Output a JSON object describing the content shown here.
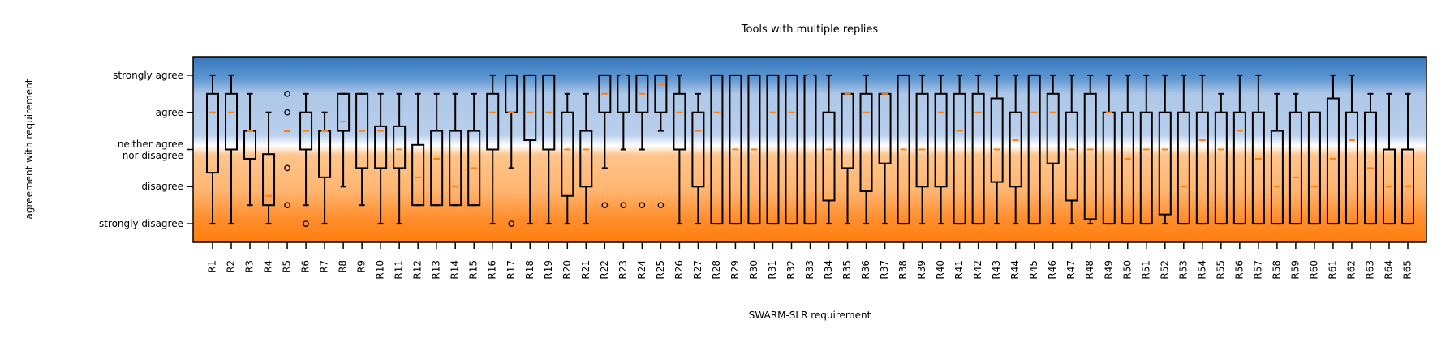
{
  "chart_data": {
    "type": "box",
    "title": "Tools with multiple replies",
    "x_label": "SWARM-SLR requirement",
    "y_label": "agreement with requirement",
    "categories": [
      "R1",
      "R2",
      "R3",
      "R4",
      "R5",
      "R6",
      "R7",
      "R8",
      "R9",
      "R10",
      "R11",
      "R12",
      "R13",
      "R14",
      "R15",
      "R16",
      "R17",
      "R18",
      "R19",
      "R20",
      "R21",
      "R22",
      "R23",
      "R24",
      "R25",
      "R26",
      "R27",
      "R28",
      "R29",
      "R30",
      "R31",
      "R32",
      "R33",
      "R34",
      "R35",
      "R36",
      "R37",
      "R38",
      "R39",
      "R40",
      "R41",
      "R42",
      "R43",
      "R44",
      "R45",
      "R46",
      "R47",
      "R48",
      "R49",
      "R50",
      "R51",
      "R52",
      "R53",
      "R54",
      "R55",
      "R56",
      "R57",
      "R58",
      "R59",
      "R60",
      "R61",
      "R62",
      "R63",
      "R64",
      "R65"
    ],
    "whislo": [
      1,
      1,
      1.5,
      1,
      3.5,
      1.5,
      1,
      2,
      1.5,
      1,
      1,
      1.5,
      1.5,
      1.5,
      1.5,
      1,
      2.5,
      1,
      1,
      1,
      1,
      2.5,
      3,
      3,
      3.5,
      1,
      1,
      1,
      1,
      1,
      1,
      1,
      1,
      1,
      1,
      1,
      1,
      1,
      1,
      1,
      1,
      1,
      1,
      1,
      1,
      1,
      1,
      1,
      1,
      1,
      1,
      1,
      1,
      1,
      1,
      1,
      1,
      1,
      1,
      1,
      1,
      1,
      1,
      1,
      1
    ],
    "q1": [
      2.375,
      3,
      2.75,
      1.5,
      3.5,
      3,
      2.25,
      3.5,
      2.5,
      2.5,
      2.5,
      1.5,
      1.5,
      1.5,
      1.5,
      3,
      4,
      3.25,
      3,
      1.75,
      2,
      4,
      4,
      4,
      4,
      3,
      2,
      1,
      1,
      1,
      1,
      1,
      1,
      1.625,
      2.5,
      1.875,
      2.625,
      1,
      2,
      2,
      1,
      1,
      2.125,
      2,
      1,
      2.625,
      1.625,
      1.125,
      1,
      1,
      1,
      1.25,
      1,
      1,
      1,
      1,
      1,
      1,
      1,
      1,
      1,
      1,
      1,
      1,
      1
    ],
    "med": [
      4,
      4,
      3.5,
      1.75,
      3.5,
      3.5,
      3.5,
      3.75,
      3.5,
      3.5,
      3,
      2.25,
      2.75,
      2,
      2.5,
      4,
      4,
      4,
      4,
      3,
      3,
      4.5,
      5,
      4.5,
      4.75,
      4,
      3.5,
      4,
      3,
      3,
      4,
      4,
      5,
      3,
      4.5,
      4,
      4.5,
      3,
      3,
      4,
      3.5,
      4,
      3,
      3.25,
      4,
      4,
      3,
      3,
      4,
      2.75,
      3,
      3,
      2,
      3.25,
      3,
      3.5,
      2.75,
      2,
      2.25,
      2,
      2.75,
      3.25,
      2.5,
      2,
      2
    ],
    "q3": [
      4.5,
      4.5,
      3.5,
      2.875,
      3.5,
      4,
      3.5,
      4.5,
      4.5,
      3.625,
      3.625,
      3.125,
      3.5,
      3.5,
      3.5,
      4.5,
      5,
      5,
      5,
      4,
      3.5,
      5,
      5,
      5,
      5,
      4.5,
      4,
      5,
      5,
      5,
      5,
      5,
      5,
      4,
      4.5,
      4.5,
      4.5,
      5,
      4.5,
      4.5,
      4.5,
      4.5,
      4.375,
      4,
      5,
      4.5,
      4,
      4.5,
      4,
      4,
      4,
      4,
      4,
      4,
      4,
      4,
      4,
      3.5,
      4,
      4,
      4.375,
      4,
      4,
      3,
      3
    ],
    "whishi": [
      5,
      5,
      4.5,
      4,
      3.5,
      4.5,
      4,
      4.5,
      4.5,
      4.5,
      4.5,
      4.5,
      4.5,
      4.5,
      4.5,
      5,
      5,
      5,
      5,
      4.5,
      4.5,
      5,
      5,
      5,
      5,
      5,
      4.5,
      5,
      5,
      5,
      5,
      5,
      5,
      5,
      4.5,
      5,
      4.5,
      5,
      5,
      5,
      5,
      5,
      5,
      5,
      5,
      5,
      5,
      5,
      5,
      5,
      5,
      5,
      5,
      5,
      4.5,
      5,
      5,
      4.5,
      4.5,
      4,
      5,
      5,
      4.5,
      4.5,
      4.5
    ],
    "fliers": [
      [],
      [],
      [],
      [],
      [
        4.5,
        4,
        2.5,
        1.5
      ],
      [
        1
      ],
      [],
      [],
      [],
      [],
      [],
      [],
      [],
      [],
      [],
      [],
      [
        1
      ],
      [],
      [],
      [],
      [],
      [
        1.5
      ],
      [
        1.5
      ],
      [
        1.5
      ],
      [
        1.5
      ],
      [],
      [],
      [],
      [],
      [],
      [],
      [],
      [],
      [],
      [],
      [],
      [],
      [],
      [],
      [],
      [],
      [],
      [],
      [],
      [],
      [],
      [],
      [],
      [],
      [],
      [],
      [],
      [],
      [],
      [],
      [],
      [],
      [],
      [],
      [],
      [],
      [],
      [],
      [],
      []
    ],
    "box_color": "#000000",
    "median_color": "#ff7f0e",
    "ylim": [
      0.5,
      5.5
    ],
    "yticks": [
      {
        "value": 1,
        "label": "strongly disagree"
      },
      {
        "value": 2,
        "label": "disagree"
      },
      {
        "value": 3,
        "label": "neither agree\nnor disagree"
      },
      {
        "value": 4,
        "label": "agree"
      },
      {
        "value": 5,
        "label": "strongly agree"
      }
    ]
  }
}
